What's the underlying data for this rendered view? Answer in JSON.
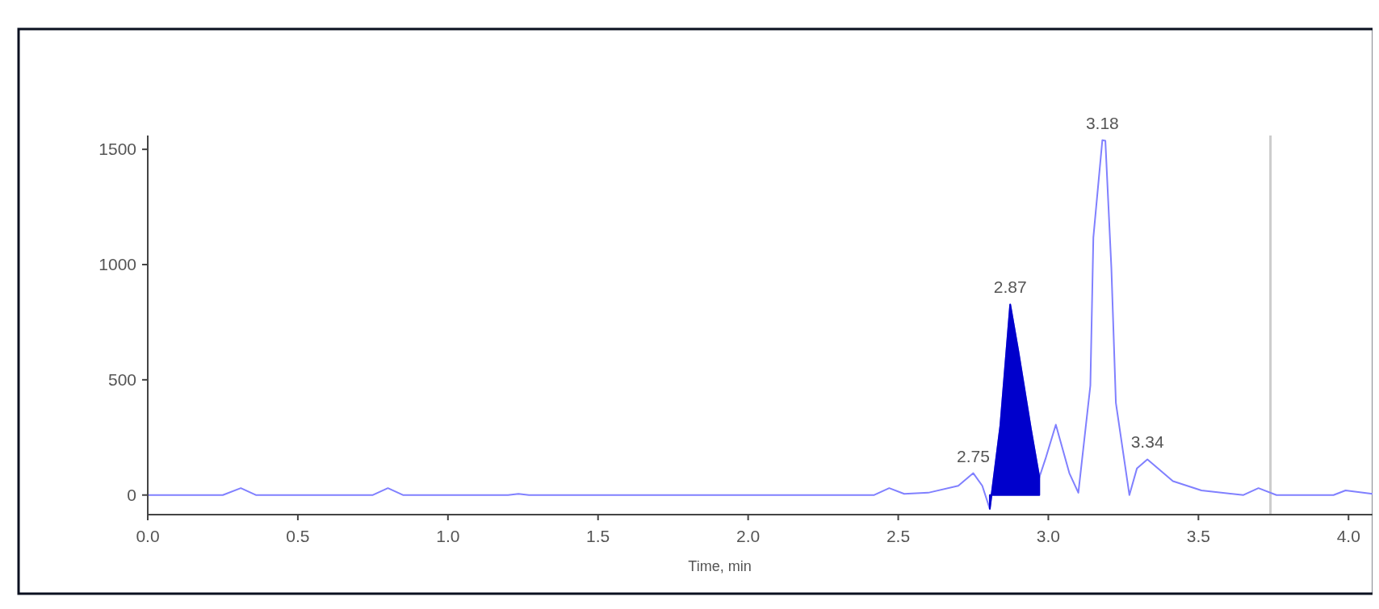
{
  "chart_data": {
    "type": "line",
    "xlabel": "Time, min",
    "series": [
      {
        "color": "#8080ff",
        "x": [
          0,
          0.25,
          0.31,
          0.36,
          0.75,
          0.8,
          0.85,
          1.2,
          1.235,
          1.27,
          2.42,
          2.47,
          2.52,
          2.6,
          2.7,
          2.75,
          2.78,
          2.805,
          2.84,
          2.873,
          2.9,
          2.942,
          2.97,
          2.99,
          3.025,
          3.07,
          3.1,
          3.14,
          3.15,
          3.18,
          3.19,
          3.21,
          3.225,
          3.27,
          3.295,
          3.33,
          3.415,
          3.51,
          3.65,
          3.7,
          3.76,
          3.95,
          3.99,
          4.08
        ],
        "values": [
          0,
          0,
          30,
          0,
          0,
          30,
          0,
          0,
          5,
          0,
          0,
          30,
          5,
          10,
          40,
          95,
          40,
          -60,
          300,
          827,
          625,
          287,
          77,
          155,
          305,
          95,
          10,
          475,
          1118,
          1540,
          1537,
          985,
          400,
          0,
          115,
          155,
          60,
          20,
          0,
          30,
          0,
          0,
          20,
          5
        ]
      },
      {
        "type": "area",
        "color": "#0000cc",
        "x": [
          2.805,
          2.84,
          2.873,
          2.9,
          2.942,
          2.97
        ],
        "values": [
          -60,
          300,
          827,
          625,
          287,
          77
        ]
      }
    ],
    "xlim": [
      0,
      4.08
    ],
    "ylim": [
      -85,
      1560
    ],
    "xticks": [
      {
        "value": 0,
        "label": "0.0"
      },
      0.5,
      {
        "value": 1,
        "label": "1.0"
      },
      1.5,
      {
        "value": 2,
        "label": "2.0"
      },
      2.5,
      {
        "value": 3,
        "label": "3.0"
      },
      3.5,
      {
        "value": 4,
        "label": "4.0"
      }
    ],
    "yticks": [
      0,
      500,
      1000,
      1500
    ],
    "ref_lines": [
      {
        "axis": "x",
        "value": 3.74,
        "color": "#cccccc"
      }
    ],
    "annotations": [
      {
        "text": "2.75",
        "x": 2.75,
        "y": 95
      },
      {
        "text": "2.87",
        "x": 2.873,
        "y": 827
      },
      {
        "text": "3.18",
        "x": 3.18,
        "y": 1540
      },
      {
        "text": "3.34",
        "x": 3.33,
        "y": 155
      }
    ],
    "grid": false
  }
}
